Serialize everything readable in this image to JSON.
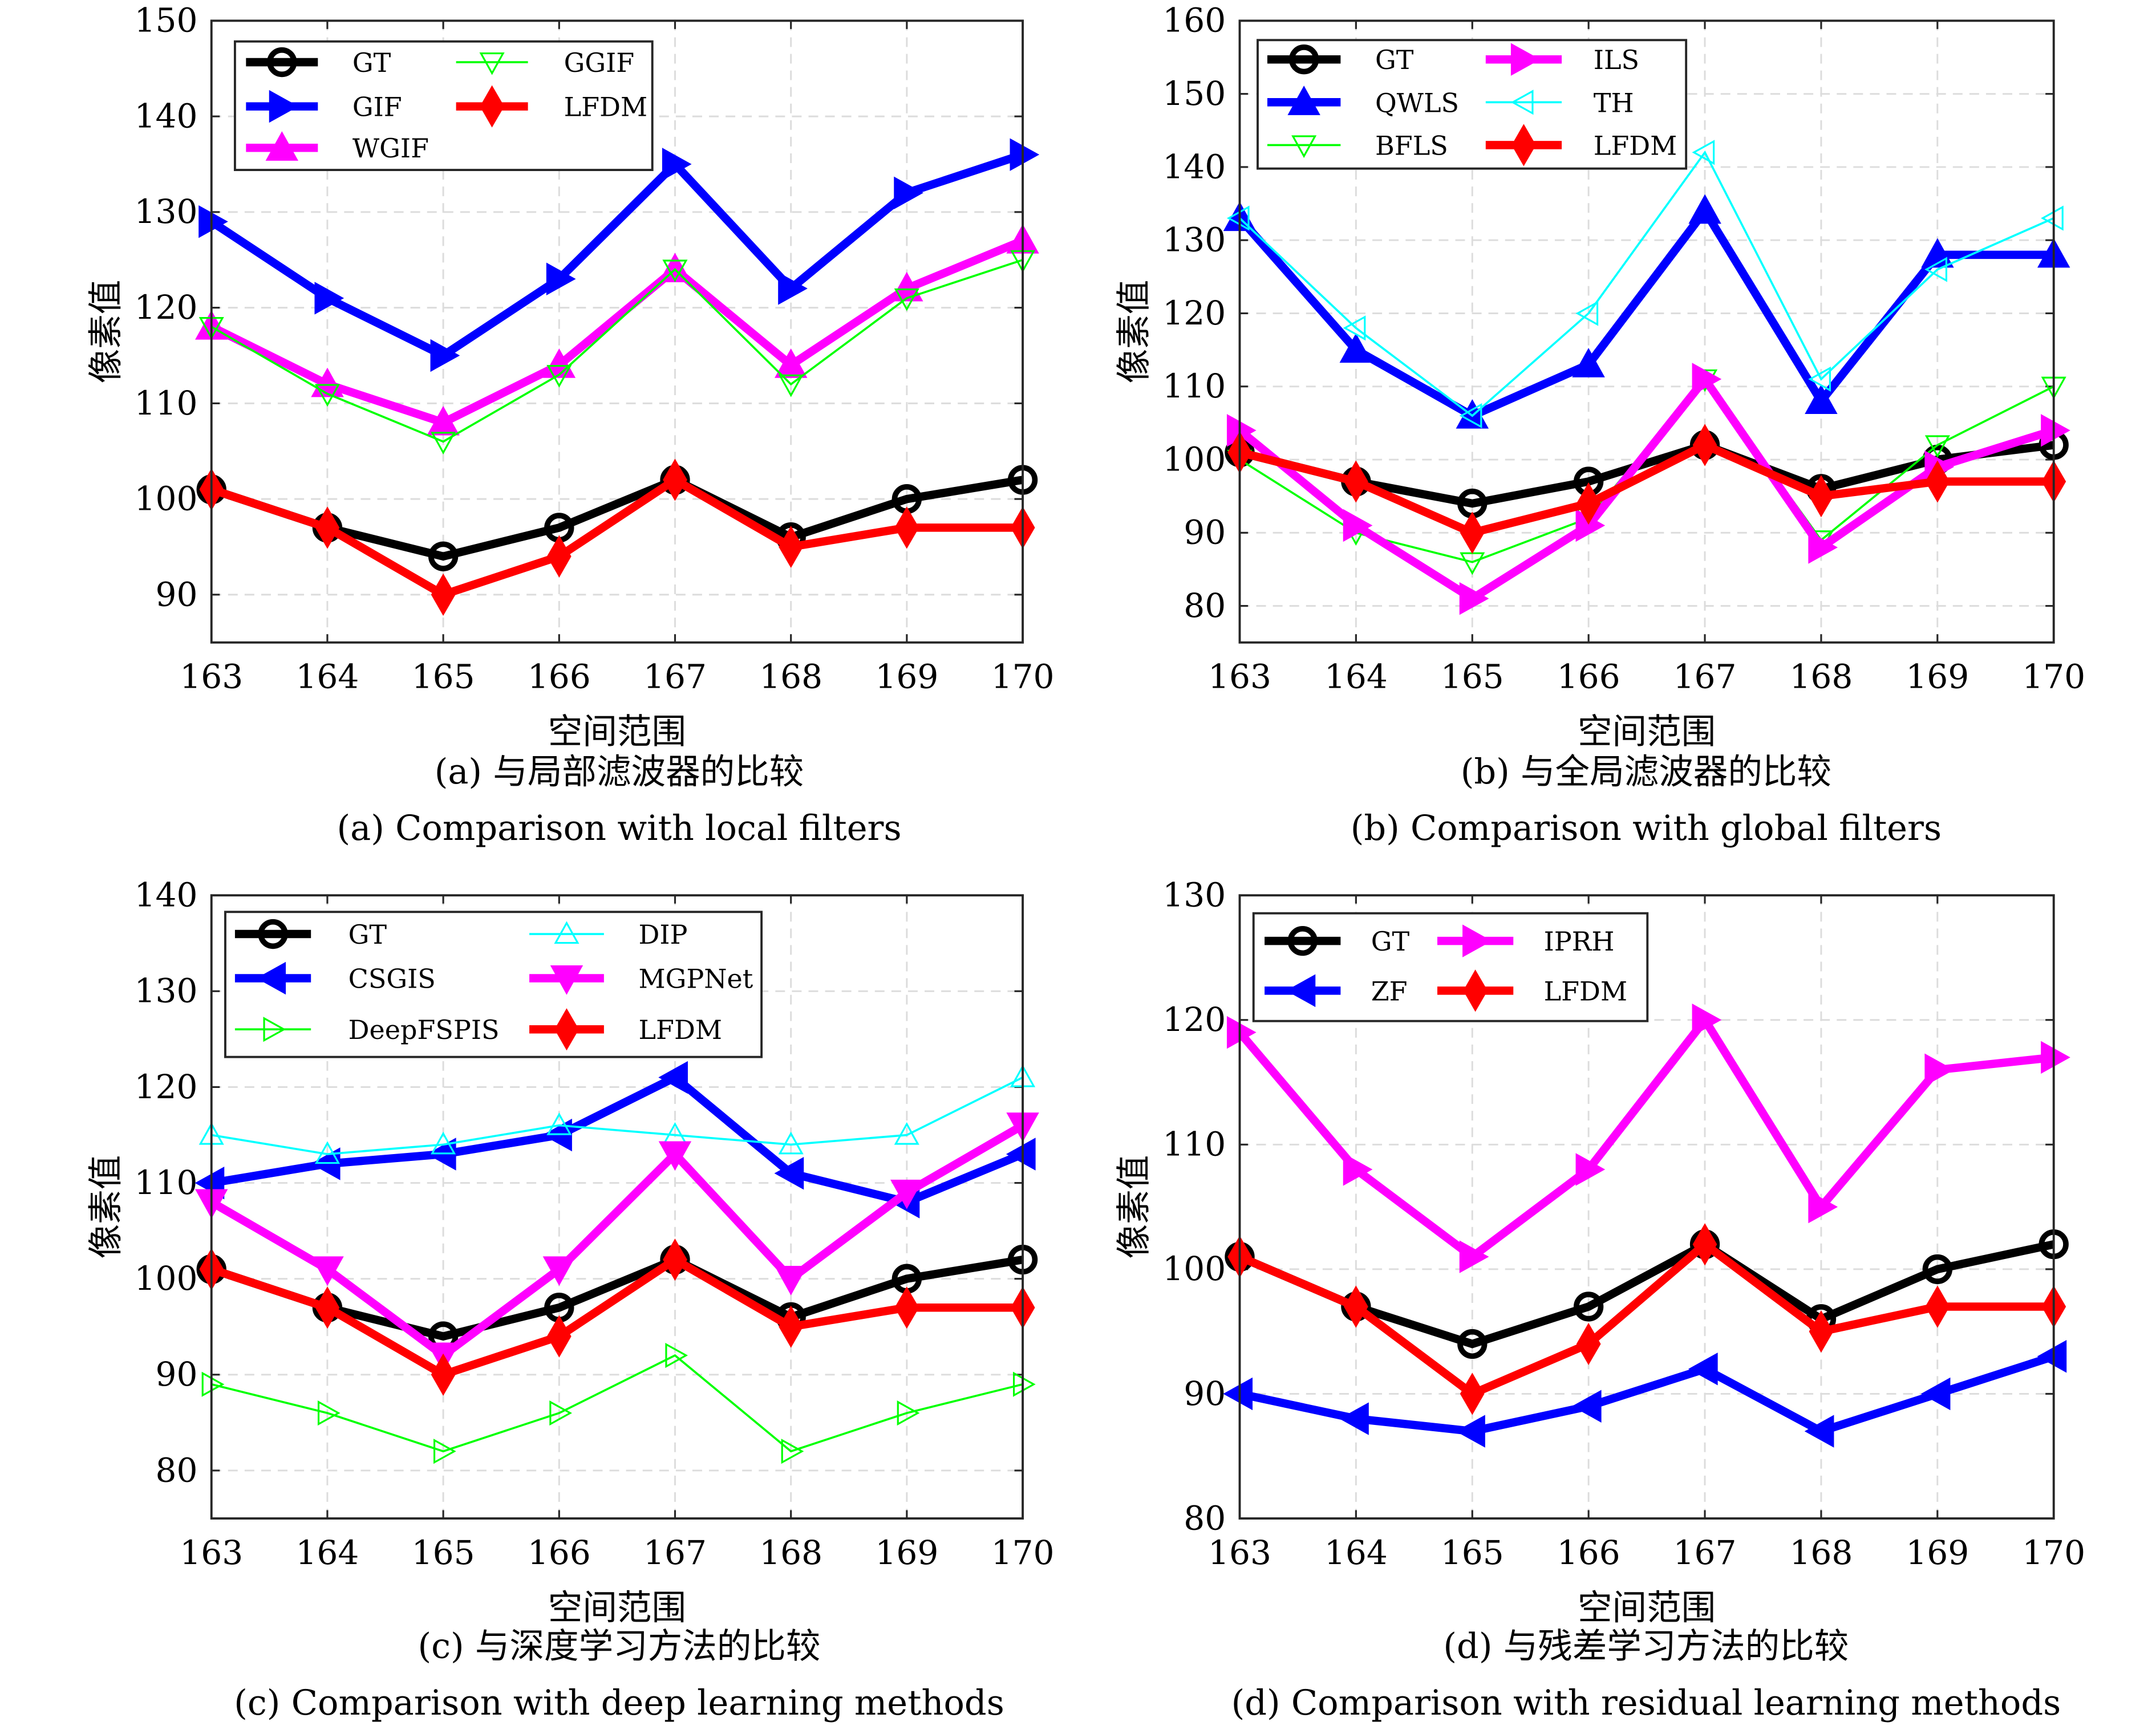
{
  "chart_data": [
    {
      "type": "line",
      "panel": "a",
      "xlabel": "空间范围",
      "ylabel": "像素值",
      "caption_cn": "(a) 与局部滤波器的比较",
      "caption_en": "(a) Comparison with local filters",
      "x": [
        163,
        164,
        165,
        166,
        167,
        168,
        169,
        170
      ],
      "xlim": [
        163,
        170
      ],
      "ylim": [
        85,
        150
      ],
      "yticks": [
        90,
        100,
        110,
        120,
        130,
        140,
        150
      ],
      "grid": true,
      "legend_position": "top-left",
      "series": [
        {
          "name": "GT",
          "color": "#000000",
          "marker": "circle",
          "style": "thick",
          "values": [
            101,
            97,
            94,
            97,
            102,
            96,
            100,
            102
          ]
        },
        {
          "name": "GIF",
          "color": "#0000ff",
          "marker": "triangle-right",
          "style": "thick",
          "values": [
            129,
            121,
            115,
            123,
            135,
            122,
            132,
            136
          ]
        },
        {
          "name": "WGIF",
          "color": "#ff00ff",
          "marker": "triangle-up",
          "style": "thick",
          "values": [
            118,
            112,
            108,
            114,
            124,
            114,
            122,
            127
          ]
        },
        {
          "name": "GGIF",
          "color": "#00ff00",
          "marker": "triangle-down-open",
          "style": "thin",
          "values": [
            118,
            111,
            106,
            113,
            124,
            112,
            121,
            125
          ]
        },
        {
          "name": "LFDM",
          "color": "#ff0000",
          "marker": "diamond",
          "style": "thick",
          "values": [
            101,
            97,
            90,
            94,
            102,
            95,
            97,
            97
          ]
        }
      ]
    },
    {
      "type": "line",
      "panel": "b",
      "xlabel": "空间范围",
      "ylabel": "像素值",
      "caption_cn": "(b) 与全局滤波器的比较",
      "caption_en": "(b) Comparison with global filters",
      "x": [
        163,
        164,
        165,
        166,
        167,
        168,
        169,
        170
      ],
      "xlim": [
        163,
        170
      ],
      "ylim": [
        75,
        160
      ],
      "yticks": [
        80,
        90,
        100,
        110,
        120,
        130,
        140,
        150,
        160
      ],
      "grid": true,
      "legend_position": "top-left",
      "series": [
        {
          "name": "GT",
          "color": "#000000",
          "marker": "circle",
          "style": "thick",
          "values": [
            101,
            97,
            94,
            97,
            102,
            96,
            100,
            102
          ]
        },
        {
          "name": "QWLS",
          "color": "#0000ff",
          "marker": "triangle-up",
          "style": "thick",
          "values": [
            133,
            115,
            106,
            113,
            134,
            108,
            128,
            128
          ]
        },
        {
          "name": "BFLS",
          "color": "#00ff00",
          "marker": "triangle-down-open",
          "style": "thin",
          "values": [
            100,
            90,
            86,
            92,
            111,
            89,
            102,
            110
          ]
        },
        {
          "name": "ILS",
          "color": "#ff00ff",
          "marker": "triangle-right",
          "style": "thick",
          "values": [
            104,
            91,
            81,
            91,
            111,
            88,
            99,
            104
          ]
        },
        {
          "name": "TH",
          "color": "#00ffff",
          "marker": "triangle-left-open",
          "style": "thin",
          "values": [
            133,
            118,
            106,
            120,
            142,
            111,
            126,
            133
          ]
        },
        {
          "name": "LFDM",
          "color": "#ff0000",
          "marker": "diamond",
          "style": "thick",
          "values": [
            101,
            97,
            90,
            94,
            102,
            95,
            97,
            97
          ]
        }
      ]
    },
    {
      "type": "line",
      "panel": "c",
      "xlabel": "空间范围",
      "ylabel": "像素值",
      "caption_cn": "(c) 与深度学习方法的比较",
      "caption_en": "(c) Comparison with deep learning methods",
      "x": [
        163,
        164,
        165,
        166,
        167,
        168,
        169,
        170
      ],
      "xlim": [
        163,
        170
      ],
      "ylim": [
        75,
        140
      ],
      "yticks": [
        80,
        90,
        100,
        110,
        120,
        130,
        140
      ],
      "grid": true,
      "legend_position": "top-left",
      "series": [
        {
          "name": "GT",
          "color": "#000000",
          "marker": "circle",
          "style": "thick",
          "values": [
            101,
            97,
            94,
            97,
            102,
            96,
            100,
            102
          ]
        },
        {
          "name": "CSGIS",
          "color": "#0000ff",
          "marker": "triangle-left",
          "style": "thick",
          "values": [
            110,
            112,
            113,
            115,
            121,
            111,
            108,
            113
          ]
        },
        {
          "name": "DeepFSPIS",
          "color": "#00ff00",
          "marker": "triangle-right-open",
          "style": "thin",
          "values": [
            89,
            86,
            82,
            86,
            92,
            82,
            86,
            89
          ]
        },
        {
          "name": "DIP",
          "color": "#00ffff",
          "marker": "triangle-up-open",
          "style": "thin",
          "values": [
            115,
            113,
            114,
            116,
            115,
            114,
            115,
            121
          ]
        },
        {
          "name": "MGPNet",
          "color": "#ff00ff",
          "marker": "triangle-down",
          "style": "thick",
          "values": [
            108,
            101,
            92,
            101,
            113,
            100,
            109,
            116
          ]
        },
        {
          "name": "LFDM",
          "color": "#ff0000",
          "marker": "diamond",
          "style": "thick",
          "values": [
            101,
            97,
            90,
            94,
            102,
            95,
            97,
            97
          ]
        }
      ]
    },
    {
      "type": "line",
      "panel": "d",
      "xlabel": "空间范围",
      "ylabel": "像素值",
      "caption_cn": "(d) 与残差学习方法的比较",
      "caption_en": "(d) Comparison with residual learning methods",
      "x": [
        163,
        164,
        165,
        166,
        167,
        168,
        169,
        170
      ],
      "xlim": [
        163,
        170
      ],
      "ylim": [
        80,
        130
      ],
      "yticks": [
        80,
        90,
        100,
        110,
        120,
        130
      ],
      "grid": true,
      "legend_position": "top-left",
      "series": [
        {
          "name": "GT",
          "color": "#000000",
          "marker": "circle",
          "style": "thick",
          "values": [
            101,
            97,
            94,
            97,
            102,
            96,
            100,
            102
          ]
        },
        {
          "name": "ZF",
          "color": "#0000ff",
          "marker": "triangle-left",
          "style": "thick",
          "values": [
            90,
            88,
            87,
            89,
            92,
            87,
            90,
            93
          ]
        },
        {
          "name": "IPRH",
          "color": "#ff00ff",
          "marker": "triangle-right",
          "style": "thick",
          "values": [
            119,
            108,
            101,
            108,
            120,
            105,
            116,
            117
          ]
        },
        {
          "name": "LFDM",
          "color": "#ff0000",
          "marker": "diamond",
          "style": "thick",
          "values": [
            101,
            97,
            90,
            94,
            102,
            95,
            97,
            97
          ]
        }
      ]
    }
  ]
}
